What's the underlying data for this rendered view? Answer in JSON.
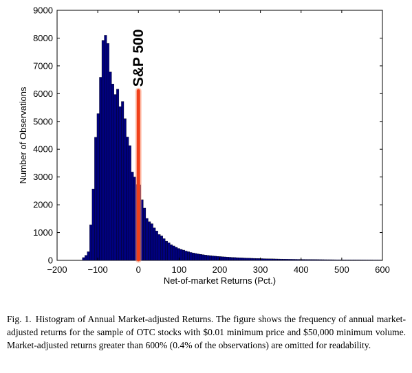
{
  "chart_data": {
    "type": "bar",
    "xlabel": "Net-of-market Returns (Pct.)",
    "ylabel": "Number of Observations",
    "xlim": [
      -200,
      600
    ],
    "ylim": [
      0,
      9000
    ],
    "xticks": [
      -200,
      -100,
      0,
      100,
      200,
      300,
      400,
      500,
      600
    ],
    "yticks": [
      0,
      1000,
      2000,
      3000,
      4000,
      5000,
      6000,
      7000,
      8000,
      9000
    ],
    "bin_width": 6,
    "bin_starts": [
      -138,
      -132,
      -126,
      -120,
      -114,
      -108,
      -102,
      -96,
      -90,
      -84,
      -78,
      -72,
      -66,
      -60,
      -54,
      -48,
      -42,
      -36,
      -30,
      -24,
      -18,
      -12,
      -6,
      0,
      6,
      12,
      18,
      24,
      30,
      36,
      42,
      48,
      54,
      60,
      66,
      72,
      78,
      84,
      90,
      96,
      102,
      108,
      114,
      120,
      126,
      132,
      138,
      144,
      150,
      156,
      162,
      168,
      174,
      180,
      186,
      192,
      198,
      204,
      210,
      216,
      222,
      228,
      234,
      240,
      246,
      252,
      258,
      264,
      270,
      276,
      282,
      288,
      294,
      300,
      306,
      312,
      318,
      324,
      330,
      336,
      342,
      348,
      354,
      360,
      366,
      372,
      378,
      384,
      390,
      396,
      402,
      408,
      414,
      420,
      426,
      432,
      438,
      444,
      450,
      456,
      462,
      468,
      474,
      480,
      486,
      492,
      498,
      504,
      510,
      516,
      522,
      528,
      534,
      540,
      546,
      552,
      558,
      564,
      570,
      576,
      582,
      588,
      594
    ],
    "values": [
      100,
      180,
      310,
      1280,
      2570,
      4430,
      5280,
      6590,
      7920,
      8100,
      7810,
      6780,
      6350,
      5970,
      6160,
      5530,
      5720,
      5100,
      4440,
      4130,
      3180,
      3000,
      2730,
      2720,
      2180,
      1880,
      1510,
      1390,
      1320,
      1170,
      1060,
      930,
      880,
      780,
      690,
      630,
      560,
      520,
      470,
      430,
      395,
      370,
      335,
      310,
      285,
      265,
      248,
      232,
      216,
      203,
      190,
      180,
      170,
      160,
      151,
      143,
      137,
      130,
      124,
      118,
      112,
      107,
      102,
      97,
      93,
      89,
      85,
      81,
      78,
      75,
      72,
      69,
      66,
      63,
      60,
      58,
      56,
      54,
      52,
      50,
      48,
      46,
      44,
      42,
      40,
      39,
      38,
      37,
      36,
      35,
      34,
      33,
      32,
      31,
      30,
      29,
      28,
      27,
      26,
      25,
      24,
      24,
      23,
      22,
      21,
      21,
      20,
      20,
      19,
      19,
      18,
      18,
      17,
      17,
      16,
      16,
      15,
      15,
      15,
      14,
      14,
      14,
      13
    ],
    "annotations": [
      {
        "label": "S&P 500",
        "x": 0,
        "y_top": 6100,
        "color": "#f0401a"
      }
    ],
    "bar_color": "#00007f",
    "grid": false
  },
  "caption": {
    "label": "Fig. 1.",
    "text": "Histogram of Annual Market-adjusted Returns. The figure shows the frequency of annual market-adjusted returns for the sample of OTC stocks with $0.01 minimum price and $50,000 minimum volume. Market-adjusted returns greater than 600% (0.4% of the observations) are omitted for readability."
  }
}
